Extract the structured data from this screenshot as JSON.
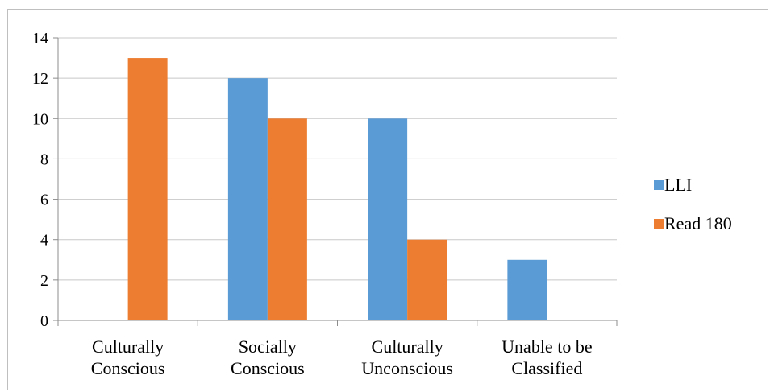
{
  "chart_data": {
    "type": "bar",
    "title": "",
    "xlabel": "",
    "ylabel": "",
    "categories": [
      [
        "Culturally",
        "Conscious"
      ],
      [
        "Socially",
        "Conscious"
      ],
      [
        "Culturally",
        "Unconscious"
      ],
      [
        "Unable to be",
        "Classified"
      ]
    ],
    "series": [
      {
        "name": "LLI",
        "color": "#5b9bd5",
        "values": [
          0,
          12,
          10,
          3
        ]
      },
      {
        "name": "Read 180",
        "color": "#ed7d31",
        "values": [
          13,
          10,
          4,
          0
        ]
      }
    ],
    "ylim": [
      0,
      14
    ],
    "yticks": [
      "0",
      "2",
      "4",
      "6",
      "8",
      "10",
      "12",
      "14"
    ],
    "grid": true,
    "legend_position": "right"
  }
}
